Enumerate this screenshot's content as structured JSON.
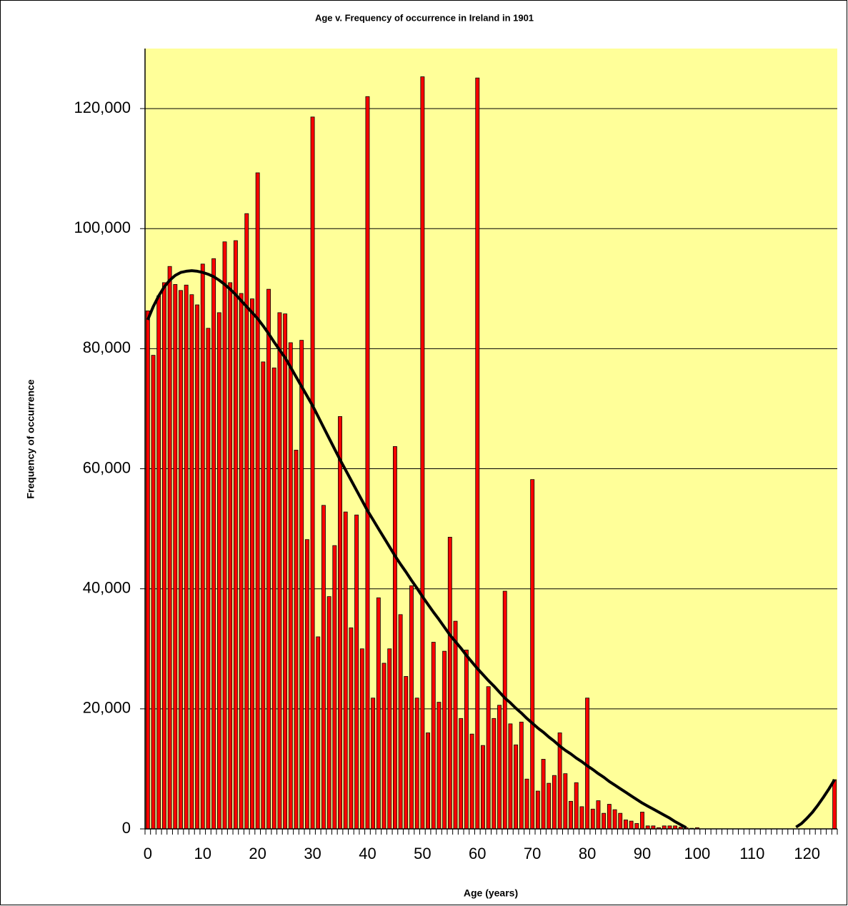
{
  "chart_data": {
    "type": "bar",
    "title": "Age v. Frequency of occurrence in Ireland in 1901",
    "x_label": "Age (years)",
    "y_label": "Frequency of occurrence",
    "categories": [
      0,
      null,
      null,
      null,
      null,
      null,
      null,
      null,
      null,
      null,
      10,
      null,
      null,
      null,
      null,
      null,
      null,
      null,
      null,
      null,
      20,
      null,
      null,
      null,
      null,
      null,
      null,
      null,
      null,
      null,
      30,
      null,
      null,
      null,
      null,
      null,
      null,
      null,
      null,
      null,
      40,
      null,
      null,
      null,
      null,
      null,
      null,
      null,
      null,
      null,
      50,
      null,
      null,
      null,
      null,
      null,
      null,
      null,
      null,
      null,
      60,
      null,
      null,
      null,
      null,
      null,
      null,
      null,
      null,
      null,
      70,
      null,
      null,
      null,
      null,
      null,
      null,
      null,
      null,
      null,
      80,
      null,
      null,
      null,
      null,
      null,
      null,
      null,
      null,
      null,
      90,
      null,
      null,
      null,
      null,
      null,
      null,
      null,
      null,
      null,
      100,
      null,
      null,
      null,
      null,
      null,
      null,
      null,
      null,
      null,
      110,
      null,
      null,
      null,
      null,
      null,
      null,
      null,
      null,
      null,
      120,
      null,
      null,
      null,
      null,
      null
    ],
    "values": [
      86300,
      78900,
      88800,
      91000,
      93700,
      90700,
      89700,
      90600,
      89000,
      87300,
      94100,
      83400,
      95000,
      86000,
      97800,
      91000,
      98000,
      89200,
      102500,
      88300,
      109300,
      77800,
      89900,
      76800,
      86000,
      85800,
      81000,
      63100,
      81400,
      48200,
      118600,
      32000,
      53900,
      38700,
      47200,
      68700,
      52800,
      33500,
      52300,
      30000,
      122000,
      21800,
      38500,
      27600,
      30000,
      63700,
      35700,
      25400,
      40500,
      21800,
      125300,
      16000,
      31100,
      21100,
      29600,
      48600,
      34600,
      18400,
      29800,
      15800,
      125100,
      13900,
      23700,
      18400,
      20600,
      39600,
      17500,
      14000,
      17800,
      8300,
      58200,
      6300,
      11600,
      7600,
      8900,
      16000,
      9200,
      4600,
      7700,
      3700,
      21800,
      3300,
      4700,
      2600,
      4100,
      3200,
      2600,
      1500,
      1300,
      900,
      2800,
      500,
      500,
      200,
      500,
      500,
      500,
      300,
      200,
      100,
      200,
      0,
      0,
      0,
      0,
      0,
      0,
      0,
      0,
      0,
      0,
      0,
      0,
      0,
      0,
      0,
      0,
      0,
      0,
      0,
      0,
      0,
      0,
      0,
      0,
      8200
    ],
    "color": "#ff0000",
    "trendline": {
      "color": "#000000",
      "values": [
        84800,
        87000,
        88800,
        90300,
        91400,
        92200,
        92700,
        92900,
        93000,
        92900,
        92700,
        92400,
        92000,
        91400,
        90700,
        89900,
        89000,
        88000,
        87000,
        86000,
        85000,
        83800,
        82500,
        81100,
        79800,
        78500,
        76900,
        75300,
        73700,
        72100,
        70500,
        68700,
        66900,
        65100,
        63300,
        61500,
        59800,
        58100,
        56400,
        54700,
        53000,
        51500,
        50000,
        48500,
        47000,
        45500,
        44100,
        42800,
        41400,
        40100,
        38700,
        37400,
        36100,
        34900,
        33600,
        32300,
        31200,
        30100,
        28900,
        27800,
        26700,
        25700,
        24700,
        23800,
        22800,
        21800,
        21000,
        20100,
        19300,
        18400,
        17600,
        16800,
        16100,
        15300,
        14600,
        13800,
        13100,
        12500,
        11800,
        11200,
        10500,
        9900,
        9200,
        8600,
        7900,
        7300,
        6700,
        6100,
        5500,
        4900,
        4300,
        3800,
        3300,
        2800,
        2300,
        1800,
        1200,
        700,
        200,
        null,
        null,
        null,
        null,
        null,
        null,
        null,
        null,
        null,
        null,
        null,
        null,
        null,
        null,
        null,
        null,
        null,
        null,
        null,
        300,
        900,
        1800,
        2800,
        4000,
        5300,
        6700,
        8200
      ]
    },
    "ylim": [
      0,
      130000
    ],
    "yticks": [
      0,
      {
        "value": 20000,
        "label": "20,000"
      },
      {
        "value": 40000,
        "label": "40,000"
      },
      {
        "value": 60000,
        "label": "60,000"
      },
      {
        "value": 80000,
        "label": "80,000"
      },
      {
        "value": 100000,
        "label": "100,000"
      },
      {
        "value": 120000,
        "label": "120,000"
      }
    ],
    "grid": true,
    "background": "#ffff99"
  }
}
